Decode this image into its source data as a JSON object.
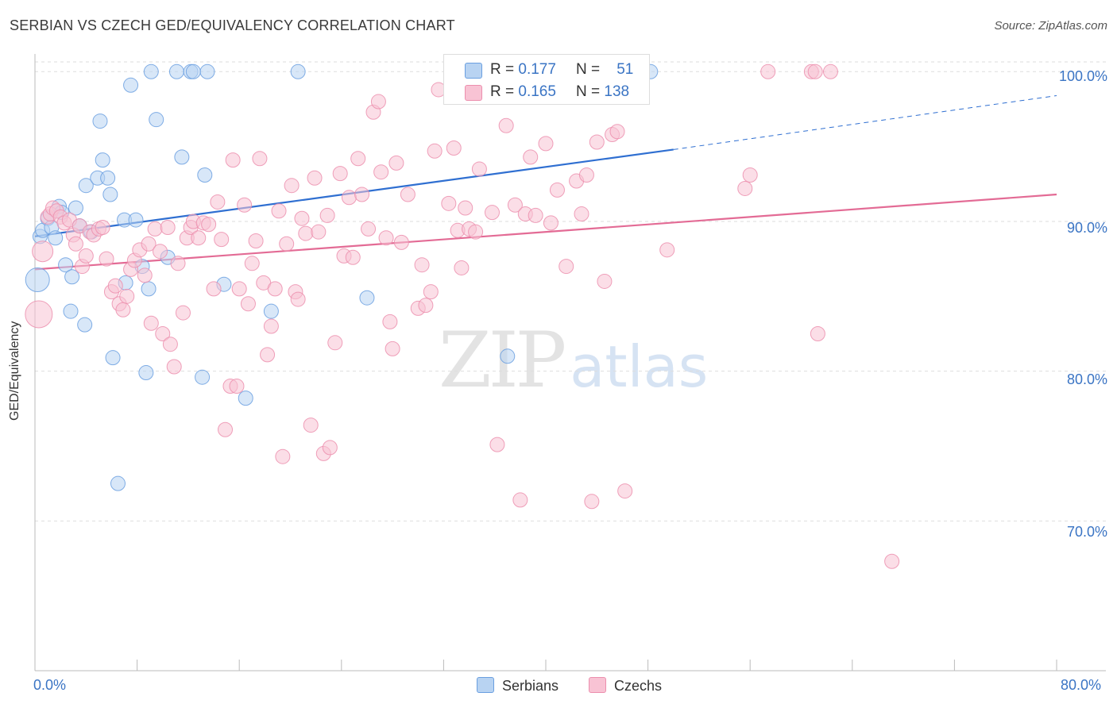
{
  "title": "SERBIAN VS CZECH GED/EQUIVALENCY CORRELATION CHART",
  "source": "Source: ZipAtlas.com",
  "watermark": {
    "zip": "ZIP",
    "atlas": "atlas"
  },
  "legend_top": {
    "rows": [
      {
        "r_label": "R = ",
        "r_value": "0.177",
        "n_label": "N = ",
        "n_value": "51"
      },
      {
        "r_label": "R = ",
        "r_value": "0.165",
        "n_label": "N = ",
        "n_value": "138"
      }
    ]
  },
  "colors": {
    "serbians_fill": "#b8d3f2",
    "serbians_stroke": "#6a9fe0",
    "serbians_line": "#2f6fd1",
    "czechs_fill": "#f8c3d4",
    "czechs_stroke": "#ec8fae",
    "czechs_line": "#e36b95",
    "tick_text": "#3a74c4",
    "grid": "#dedede"
  },
  "chart_data": {
    "type": "scatter",
    "title": "SERBIAN VS CZECH GED/EQUIVALENCY CORRELATION CHART",
    "xlabel": "",
    "ylabel": "GED/Equivalency",
    "xlim": [
      0,
      80
    ],
    "ylim": [
      60,
      101.5
    ],
    "x_tick_labels": [
      "0.0%",
      "80.0%"
    ],
    "y_ticks": [
      70,
      80,
      90,
      100
    ],
    "y_tick_labels": [
      "70.0%",
      "80.0%",
      "90.0%",
      "100.0%"
    ],
    "grid": true,
    "legend_position": "bottom",
    "series": [
      {
        "name": "Serbians",
        "r": 0.177,
        "n": 51,
        "trend": {
          "x0": 0,
          "y0": 89.0,
          "x1": 50,
          "y1": 94.8,
          "dashed_to": 80,
          "dashed_y": 98.4
        },
        "points": [
          [
            0.2,
            86.1,
            14
          ],
          [
            0.4,
            89.0,
            8
          ],
          [
            0.6,
            89.4,
            8
          ],
          [
            1.0,
            90.2,
            8
          ],
          [
            1.3,
            89.6,
            8
          ],
          [
            1.6,
            88.9,
            8
          ],
          [
            1.9,
            91.0,
            8
          ],
          [
            2.1,
            90.6,
            8
          ],
          [
            2.4,
            87.1,
            8
          ],
          [
            2.8,
            84.0,
            8
          ],
          [
            2.9,
            86.3,
            8
          ],
          [
            3.2,
            90.9,
            8
          ],
          [
            3.5,
            89.7,
            8
          ],
          [
            3.9,
            83.1,
            8
          ],
          [
            4.0,
            92.4,
            8
          ],
          [
            4.4,
            89.3,
            8
          ],
          [
            4.9,
            92.9,
            8
          ],
          [
            5.1,
            96.7,
            8
          ],
          [
            5.3,
            94.1,
            8
          ],
          [
            5.7,
            92.9,
            8
          ],
          [
            5.9,
            91.8,
            8
          ],
          [
            6.1,
            80.9,
            8
          ],
          [
            6.5,
            72.5,
            8
          ],
          [
            7.0,
            90.1,
            8
          ],
          [
            7.1,
            85.9,
            8
          ],
          [
            7.5,
            99.1,
            8
          ],
          [
            7.9,
            90.1,
            8
          ],
          [
            8.4,
            87.0,
            8
          ],
          [
            8.7,
            79.9,
            8
          ],
          [
            8.9,
            85.5,
            8
          ],
          [
            9.1,
            100.0,
            8
          ],
          [
            9.5,
            96.8,
            8
          ],
          [
            10.4,
            87.6,
            8
          ],
          [
            11.1,
            100.0,
            8
          ],
          [
            11.5,
            94.3,
            8
          ],
          [
            12.2,
            100.0,
            8
          ],
          [
            12.4,
            100.0,
            8
          ],
          [
            13.1,
            79.6,
            8
          ],
          [
            13.3,
            93.1,
            8
          ],
          [
            13.5,
            100.0,
            8
          ],
          [
            14.8,
            85.8,
            8
          ],
          [
            16.5,
            78.2,
            8
          ],
          [
            18.5,
            84.0,
            8
          ],
          [
            20.6,
            100.0,
            8
          ],
          [
            26.0,
            84.9,
            8
          ],
          [
            37.0,
            81.0,
            8
          ],
          [
            48.2,
            100.0,
            8
          ]
        ]
      },
      {
        "name": "Czechs",
        "r": 0.165,
        "n": 138,
        "trend": {
          "x0": 0,
          "y0": 86.8,
          "x1": 80,
          "y1": 91.8
        },
        "points": [
          [
            0.3,
            83.8,
            16
          ],
          [
            0.6,
            88.0,
            12
          ],
          [
            1.0,
            90.3,
            8
          ],
          [
            1.2,
            90.5,
            8
          ],
          [
            1.4,
            90.9,
            8
          ],
          [
            1.7,
            90.7,
            8
          ],
          [
            2.0,
            90.3,
            8
          ],
          [
            2.3,
            89.9,
            8
          ],
          [
            2.7,
            90.1,
            8
          ],
          [
            3.0,
            89.1,
            8
          ],
          [
            3.2,
            88.5,
            8
          ],
          [
            3.5,
            89.7,
            8
          ],
          [
            3.7,
            87.0,
            8
          ],
          [
            4.0,
            87.7,
            8
          ],
          [
            4.3,
            89.3,
            8
          ],
          [
            4.6,
            89.1,
            8
          ],
          [
            5.0,
            89.5,
            8
          ],
          [
            5.3,
            89.6,
            8
          ],
          [
            5.6,
            87.5,
            8
          ],
          [
            6.0,
            85.3,
            8
          ],
          [
            6.3,
            85.7,
            8
          ],
          [
            6.6,
            84.5,
            8
          ],
          [
            6.9,
            84.1,
            8
          ],
          [
            7.2,
            85.0,
            8
          ],
          [
            7.5,
            86.8,
            8
          ],
          [
            7.8,
            87.4,
            8
          ],
          [
            8.2,
            88.1,
            8
          ],
          [
            8.6,
            86.4,
            8
          ],
          [
            8.9,
            88.5,
            8
          ],
          [
            9.1,
            83.2,
            8
          ],
          [
            9.4,
            89.5,
            8
          ],
          [
            9.8,
            88.0,
            8
          ],
          [
            10.0,
            82.5,
            8
          ],
          [
            10.4,
            89.6,
            8
          ],
          [
            10.6,
            81.8,
            8
          ],
          [
            10.9,
            80.3,
            8
          ],
          [
            11.2,
            87.2,
            8
          ],
          [
            11.6,
            83.9,
            8
          ],
          [
            11.9,
            88.9,
            8
          ],
          [
            12.2,
            89.6,
            8
          ],
          [
            12.4,
            90.0,
            8
          ],
          [
            12.8,
            88.9,
            8
          ],
          [
            13.2,
            89.9,
            8
          ],
          [
            13.6,
            89.8,
            8
          ],
          [
            14.0,
            85.5,
            8
          ],
          [
            14.3,
            91.3,
            8
          ],
          [
            14.6,
            88.8,
            8
          ],
          [
            14.9,
            76.1,
            8
          ],
          [
            15.3,
            79.0,
            8
          ],
          [
            15.5,
            94.1,
            8
          ],
          [
            15.8,
            79.0,
            8
          ],
          [
            16.0,
            85.5,
            8
          ],
          [
            16.4,
            91.1,
            8
          ],
          [
            16.7,
            84.5,
            8
          ],
          [
            17.0,
            87.2,
            8
          ],
          [
            17.3,
            88.7,
            8
          ],
          [
            17.6,
            94.2,
            8
          ],
          [
            17.9,
            85.9,
            8
          ],
          [
            18.2,
            81.1,
            8
          ],
          [
            18.5,
            83.0,
            8
          ],
          [
            18.8,
            85.5,
            8
          ],
          [
            19.1,
            90.7,
            8
          ],
          [
            19.4,
            74.3,
            8
          ],
          [
            19.7,
            88.5,
            8
          ],
          [
            20.1,
            92.4,
            8
          ],
          [
            20.4,
            85.3,
            8
          ],
          [
            20.6,
            84.8,
            8
          ],
          [
            20.9,
            90.2,
            8
          ],
          [
            21.2,
            89.2,
            8
          ],
          [
            21.6,
            76.4,
            8
          ],
          [
            21.9,
            92.9,
            8
          ],
          [
            22.2,
            89.3,
            8
          ],
          [
            22.6,
            74.5,
            8
          ],
          [
            22.9,
            90.4,
            8
          ],
          [
            23.1,
            74.9,
            8
          ],
          [
            23.5,
            81.9,
            8
          ],
          [
            23.9,
            93.2,
            8
          ],
          [
            24.2,
            87.7,
            8
          ],
          [
            24.6,
            91.6,
            8
          ],
          [
            24.9,
            87.6,
            8
          ],
          [
            25.3,
            94.2,
            8
          ],
          [
            25.6,
            91.8,
            8
          ],
          [
            26.1,
            89.5,
            8
          ],
          [
            26.5,
            97.3,
            8
          ],
          [
            26.9,
            98.0,
            8
          ],
          [
            27.1,
            93.3,
            8
          ],
          [
            27.5,
            88.9,
            8
          ],
          [
            27.8,
            83.3,
            8
          ],
          [
            28.0,
            81.5,
            8
          ],
          [
            28.3,
            93.9,
            8
          ],
          [
            28.7,
            88.6,
            8
          ],
          [
            29.2,
            91.8,
            8
          ],
          [
            30.0,
            84.2,
            8
          ],
          [
            30.3,
            87.1,
            8
          ],
          [
            30.6,
            84.4,
            8
          ],
          [
            31.0,
            85.3,
            8
          ],
          [
            31.3,
            94.7,
            8
          ],
          [
            31.6,
            98.8,
            8
          ],
          [
            32.4,
            91.2,
            8
          ],
          [
            32.8,
            94.9,
            8
          ],
          [
            33.1,
            89.4,
            8
          ],
          [
            33.4,
            86.9,
            8
          ],
          [
            33.7,
            90.9,
            8
          ],
          [
            34.0,
            89.5,
            8
          ],
          [
            34.5,
            89.3,
            8
          ],
          [
            34.8,
            93.5,
            8
          ],
          [
            35.2,
            100.0,
            8
          ],
          [
            35.8,
            90.6,
            8
          ],
          [
            36.2,
            75.1,
            8
          ],
          [
            36.9,
            96.4,
            8
          ],
          [
            37.6,
            91.1,
            8
          ],
          [
            38.0,
            71.4,
            8
          ],
          [
            38.4,
            90.5,
            8
          ],
          [
            38.8,
            94.3,
            8
          ],
          [
            39.2,
            90.4,
            8
          ],
          [
            40.0,
            95.2,
            8
          ],
          [
            40.4,
            89.9,
            8
          ],
          [
            40.9,
            92.1,
            8
          ],
          [
            41.6,
            87.0,
            8
          ],
          [
            42.4,
            92.7,
            8
          ],
          [
            42.8,
            90.5,
            8
          ],
          [
            43.2,
            93.1,
            8
          ],
          [
            43.6,
            71.3,
            8
          ],
          [
            44.0,
            95.3,
            8
          ],
          [
            44.6,
            86.0,
            8
          ],
          [
            45.2,
            95.8,
            8
          ],
          [
            45.6,
            96.0,
            8
          ],
          [
            46.2,
            72.0,
            8
          ],
          [
            46.8,
            100.0,
            8
          ],
          [
            49.5,
            88.1,
            8
          ],
          [
            55.6,
            92.2,
            8
          ],
          [
            56.0,
            93.1,
            8
          ],
          [
            57.4,
            100.0,
            8
          ],
          [
            60.8,
            100.0,
            8
          ],
          [
            61.1,
            100.0,
            8
          ],
          [
            61.3,
            82.5,
            8
          ],
          [
            62.3,
            100.0,
            8
          ],
          [
            67.1,
            67.3,
            8
          ]
        ]
      }
    ]
  }
}
